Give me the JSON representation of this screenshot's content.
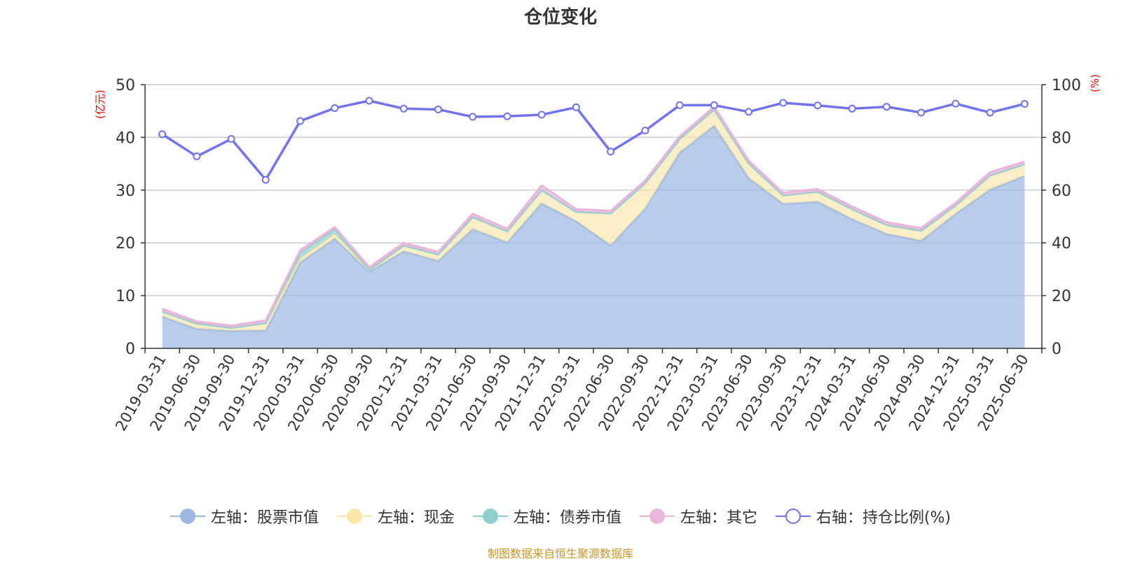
{
  "title": "仓位变化",
  "left_unit": "(亿元)",
  "right_unit": "(%)",
  "source": "制图数据来自恒生聚源数据库",
  "colors": {
    "stock": "#9bb8e1",
    "cash": "#f8e7a9",
    "bond": "#8fd0cf",
    "other": "#e7b6da",
    "ratio": "#7272ee"
  },
  "chart_data": {
    "type": "area",
    "categories": [
      "2019-03-31",
      "2019-06-30",
      "2019-09-30",
      "2019-12-31",
      "2020-03-31",
      "2020-06-30",
      "2020-09-30",
      "2020-12-31",
      "2021-03-31",
      "2021-06-30",
      "2021-09-30",
      "2021-12-31",
      "2022-03-31",
      "2022-06-30",
      "2022-09-30",
      "2022-12-31",
      "2023-03-31",
      "2023-06-30",
      "2023-09-30",
      "2023-12-31",
      "2024-03-31",
      "2024-06-30",
      "2024-09-30",
      "2024-12-31",
      "2025-03-31",
      "2025-06-30"
    ],
    "left_axis": {
      "ylim": [
        0,
        50
      ],
      "ticks": [
        0,
        10,
        20,
        30,
        40,
        50
      ]
    },
    "right_axis": {
      "ylim": [
        0,
        100
      ],
      "ticks": [
        0,
        20,
        40,
        60,
        80,
        100
      ]
    },
    "stacked_series": [
      {
        "name": "左轴：股票市值",
        "key": "stock",
        "values": [
          6.0,
          3.7,
          3.3,
          3.4,
          16.3,
          20.8,
          14.5,
          18.4,
          16.6,
          22.6,
          20.1,
          27.5,
          24.1,
          19.5,
          26.5,
          37.1,
          42.2,
          32.3,
          27.4,
          27.8,
          24.5,
          21.7,
          20.4,
          25.5,
          30.1,
          32.7
        ]
      },
      {
        "name": "左轴：现金",
        "key": "cash",
        "values": [
          1.0,
          1.0,
          0.6,
          1.4,
          0.8,
          0.9,
          0.4,
          1.1,
          1.2,
          2.3,
          2.1,
          2.5,
          1.8,
          6.1,
          4.8,
          2.6,
          3.1,
          2.8,
          1.6,
          1.9,
          1.9,
          1.7,
          1.9,
          1.6,
          2.7,
          2.2
        ]
      },
      {
        "name": "左轴：债券市值",
        "key": "bond",
        "values": [
          0.0,
          0.0,
          0.0,
          0.0,
          1.0,
          0.9,
          0.0,
          0.0,
          0.0,
          0.0,
          0.0,
          0.0,
          0.0,
          0.0,
          0.0,
          0.0,
          0.0,
          0.0,
          0.0,
          0.0,
          0.0,
          0.0,
          0.0,
          0.0,
          0.0,
          0.0
        ]
      },
      {
        "name": "左轴：其它",
        "key": "other",
        "values": [
          0.5,
          0.4,
          0.4,
          0.5,
          0.5,
          0.4,
          0.5,
          0.5,
          0.5,
          0.6,
          0.5,
          0.9,
          0.5,
          0.5,
          0.5,
          0.5,
          0.5,
          0.5,
          0.5,
          0.5,
          0.5,
          0.5,
          0.5,
          0.5,
          0.6,
          0.5
        ]
      }
    ],
    "line_series": {
      "name": "右轴：持仓比例(%)",
      "key": "ratio",
      "values": [
        81.2,
        72.8,
        79.4,
        63.9,
        86.2,
        91.1,
        93.9,
        90.9,
        90.6,
        87.8,
        88.0,
        88.6,
        91.4,
        74.6,
        82.6,
        92.2,
        92.2,
        89.7,
        93.1,
        92.1,
        90.9,
        91.6,
        89.4,
        92.8,
        89.4,
        92.7
      ]
    }
  }
}
